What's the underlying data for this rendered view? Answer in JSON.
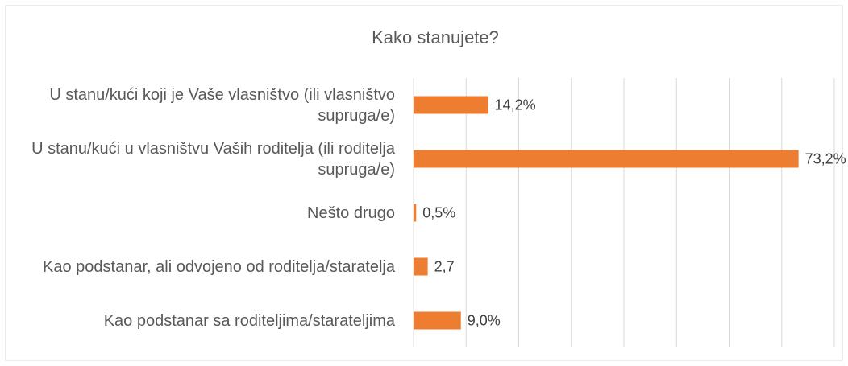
{
  "chart_data": {
    "type": "hbar",
    "title": "Kako stanujete?",
    "categories": [
      "U stanu/kući koji je Vaše vlasništvo (ili vlasništvo supruga/e)",
      "U stanu/kući u vlasništvu Vaših roditelja (ili roditelja supruga/e)",
      "Nešto drugo",
      "Kao podstanar, ali odvojeno od roditelja/staratelja",
      "Kao podstanar sa roditeljima/starateljima"
    ],
    "values": [
      14.2,
      73.2,
      0.5,
      2.7,
      9.0
    ],
    "value_labels": [
      "14,2%",
      "73,2%",
      "0,5%",
      "2,7",
      "9,0%"
    ],
    "color": "#ed7d31",
    "xlim": [
      0,
      80
    ],
    "xticks": [
      0,
      10,
      20,
      30,
      40,
      50,
      60,
      70,
      80
    ],
    "grid": true
  }
}
